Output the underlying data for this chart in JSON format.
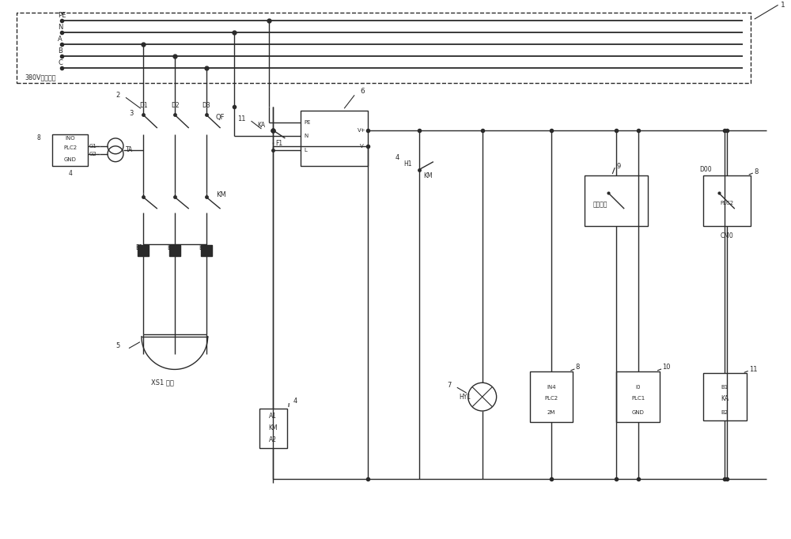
{
  "fig_width": 10.0,
  "fig_height": 6.82,
  "bg_color": "#ffffff",
  "lc": "#2a2a2a",
  "lw": 1.0,
  "bus_labels": [
    "PE",
    "N",
    "A",
    "B",
    "C"
  ],
  "bus_label_380": "380V交流电源"
}
